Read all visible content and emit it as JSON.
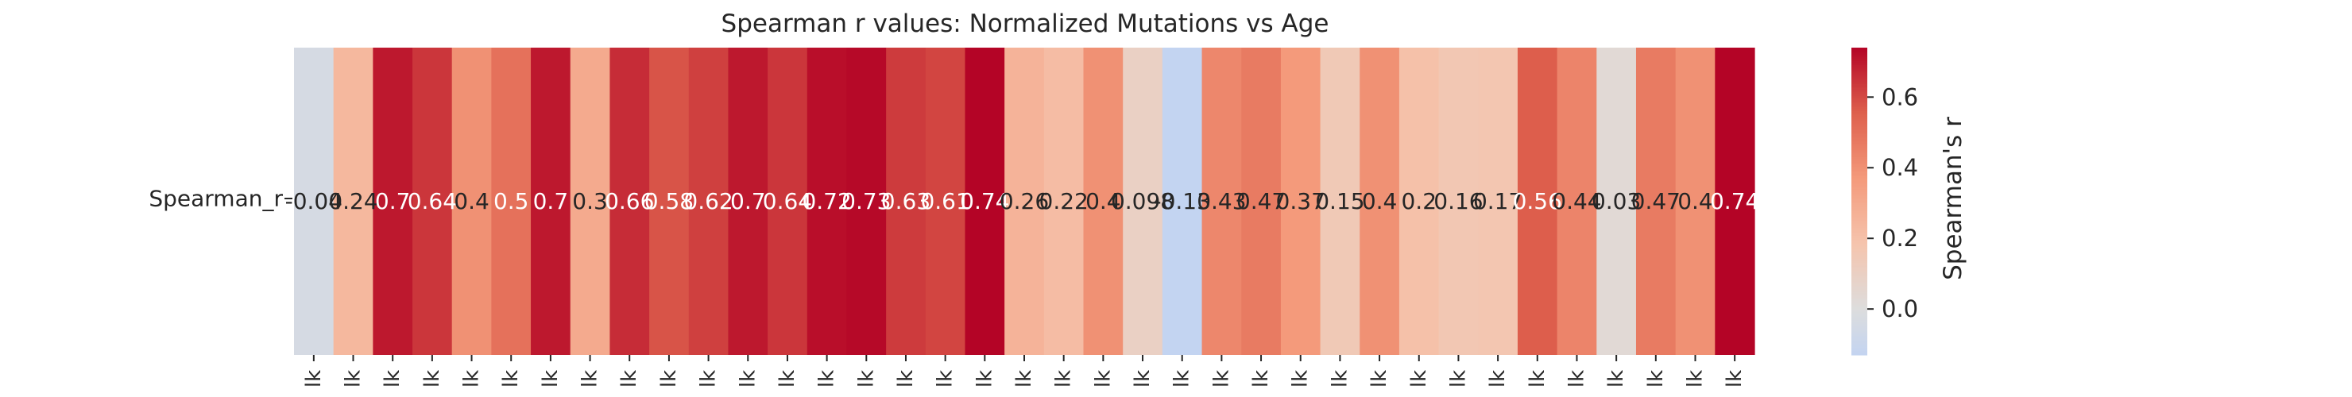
{
  "chart_data": {
    "type": "heatmap",
    "title": "Spearman r values: Normalized Mutations vs Age",
    "row_label": "Spearman_r",
    "column_tick_label": "lk",
    "values": [
      -0.04,
      0.24,
      0.7,
      0.64,
      0.4,
      0.5,
      0.7,
      0.3,
      0.66,
      0.58,
      0.62,
      0.7,
      0.64,
      0.72,
      0.73,
      0.63,
      0.61,
      0.74,
      0.26,
      0.22,
      0.4,
      0.098,
      -0.13,
      0.43,
      0.47,
      0.37,
      0.15,
      0.4,
      0.2,
      0.16,
      0.17,
      0.56,
      0.44,
      0.03,
      0.47,
      0.4,
      0.74
    ],
    "value_labels": [
      "-0.04",
      "0.24",
      "0.7",
      "0.64",
      "0.4",
      "0.5",
      "0.7",
      "0.3",
      "0.66",
      "0.58",
      "0.62",
      "0.7",
      "0.64",
      "0.72",
      "0.73",
      "0.63",
      "0.61",
      "0.74",
      "0.26",
      "0.22",
      "0.4",
      "0.098",
      "-0.13",
      "0.43",
      "0.47",
      "0.37",
      "0.15",
      "0.4",
      "0.2",
      "0.16",
      "0.17",
      "0.56",
      "0.44",
      "0.03",
      "0.47",
      "0.4",
      "0.74"
    ],
    "colorbar": {
      "label": "Spearman's r",
      "vmin": -0.13,
      "vmax": 0.74,
      "ticks": [
        0.0,
        0.2,
        0.4,
        0.6
      ],
      "tick_labels": [
        "0.0",
        "0.2",
        "0.4",
        "0.6"
      ]
    },
    "colormap": "coolwarm",
    "colormap_center": 0,
    "grid": false
  }
}
